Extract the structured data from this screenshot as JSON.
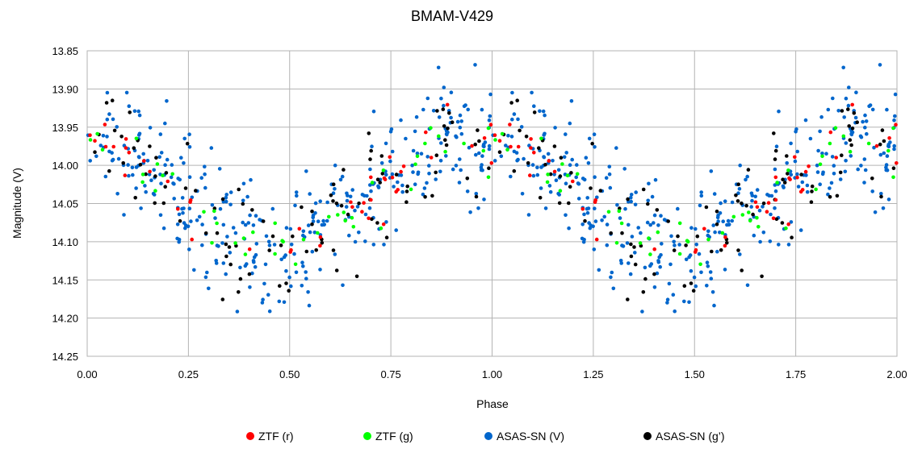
{
  "chart_data": {
    "type": "scatter",
    "title": "BMAM-V429",
    "xlabel": "Phase",
    "ylabel": "Magnitude (V)",
    "xlim": [
      0,
      2
    ],
    "ylim": [
      13.85,
      14.25
    ],
    "y_inverted": true,
    "grid": true,
    "legend_position": "bottom",
    "x_ticks": [
      "0.00",
      "0.25",
      "0.50",
      "0.75",
      "1.00",
      "1.25",
      "1.50",
      "1.75",
      "2.00"
    ],
    "y_ticks": [
      "13.85",
      "13.90",
      "13.95",
      "14.00",
      "14.05",
      "14.10",
      "14.15",
      "14.20",
      "14.25"
    ],
    "light_curve": {
      "period_phase": 1.0,
      "max_mag": 13.96,
      "min_mag": 14.105,
      "min_phase": 0.47
    },
    "series": [
      {
        "name": "ZTF (r)",
        "color": "#ff0000",
        "count": 45,
        "scatter": 0.02
      },
      {
        "name": "ZTF (g)",
        "color": "#00ff00",
        "count": 45,
        "scatter": 0.018
      },
      {
        "name": "ASAS-SN (V)",
        "color": "#0066cc",
        "count": 360,
        "scatter": 0.045
      },
      {
        "name": "ASAS-SN (g’)",
        "color": "#000000",
        "count": 100,
        "scatter": 0.04
      }
    ]
  }
}
